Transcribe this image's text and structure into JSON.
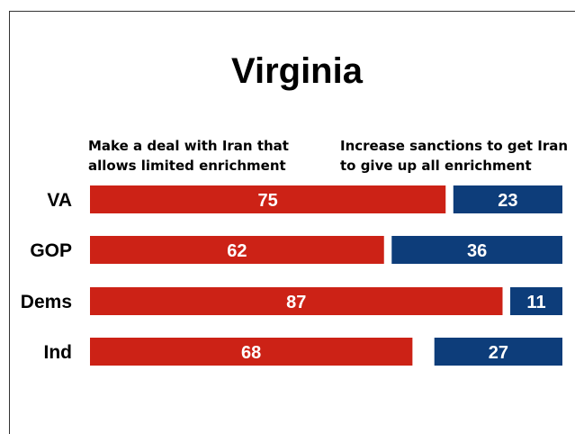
{
  "chart_data": {
    "type": "bar",
    "orientation": "horizontal",
    "stacked": "diverging",
    "title": "Virginia",
    "categories": [
      "VA",
      "GOP",
      "Dems",
      "Ind"
    ],
    "series": [
      {
        "name": "Make a deal with Iran that allows limited enrichment",
        "name_lines": [
          "Make a deal with Iran that",
          "allows limited enrichment"
        ],
        "color": "#cc2216",
        "values": [
          75,
          62,
          87,
          68
        ]
      },
      {
        "name": "Increase sanctions to get Iran to give up all enrichment",
        "name_lines": [
          "Increase sanctions to get Iran",
          "to give up all enrichment"
        ],
        "color": "#0d3d7a",
        "values": [
          23,
          36,
          11,
          27
        ]
      }
    ],
    "xlim": [
      0,
      120
    ],
    "grid": false,
    "legend": "top",
    "data_labels": true
  }
}
